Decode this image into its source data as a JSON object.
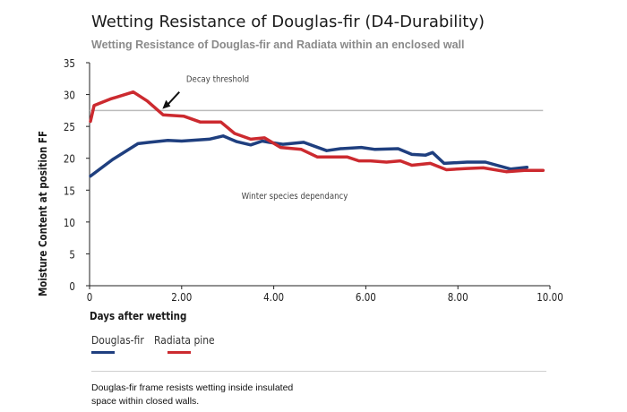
{
  "chart_data": {
    "type": "line",
    "title": "Wetting Resistance of Douglas-fir (D4-Durability)",
    "subtitle": "Wetting Resistance of Douglas-fir and Radiata within an enclosed wall",
    "xlabel": "Days after wetting",
    "ylabel": "Moisture Content at position FF",
    "xlim": [
      0,
      10
    ],
    "ylim": [
      0,
      35
    ],
    "x_ticks": [
      "0",
      "2.00",
      "4.00",
      "6.00",
      "8.00",
      "10.00"
    ],
    "y_ticks": [
      "0",
      "5",
      "10",
      "15",
      "20",
      "25",
      "30",
      "35"
    ],
    "grid": false,
    "legend_position": "bottom-left",
    "series": [
      {
        "name": "Douglas-fir",
        "color": "#1f3f7f",
        "x": [
          0.02,
          0.5,
          1.05,
          1.3,
          1.7,
          2.0,
          2.6,
          2.9,
          3.2,
          3.5,
          3.75,
          3.9,
          4.2,
          4.65,
          5.15,
          5.45,
          5.9,
          6.2,
          6.7,
          7.0,
          7.3,
          7.45,
          7.7,
          8.2,
          8.6,
          9.15,
          9.5
        ],
        "values": [
          17.2,
          19.8,
          22.3,
          22.5,
          22.8,
          22.7,
          23.0,
          23.5,
          22.6,
          22.1,
          22.7,
          22.5,
          22.2,
          22.5,
          21.2,
          21.5,
          21.7,
          21.4,
          21.5,
          20.6,
          20.5,
          20.9,
          19.2,
          19.4,
          19.4,
          18.3,
          18.6
        ]
      },
      {
        "name": "Radiata pine",
        "color": "#cc2a2f",
        "x": [
          0.02,
          0.1,
          0.45,
          0.95,
          1.25,
          1.6,
          2.05,
          2.4,
          2.85,
          3.15,
          3.5,
          3.8,
          4.15,
          4.6,
          4.95,
          5.2,
          5.6,
          5.85,
          6.1,
          6.45,
          6.75,
          7.0,
          7.4,
          7.75,
          8.2,
          8.55,
          9.05,
          9.45,
          9.85
        ],
        "values": [
          25.8,
          28.3,
          29.3,
          30.4,
          29.0,
          26.8,
          26.6,
          25.7,
          25.7,
          23.9,
          23.0,
          23.2,
          21.7,
          21.4,
          20.2,
          20.2,
          20.2,
          19.6,
          19.6,
          19.4,
          19.6,
          18.9,
          19.2,
          18.2,
          18.4,
          18.5,
          17.9,
          18.1,
          18.1
        ]
      }
    ],
    "threshold": {
      "value": 27.5,
      "color": "#bbbbbb"
    },
    "annotations": [
      {
        "text": "Decay threshold",
        "x": 2.1,
        "y": 32.0
      },
      {
        "text": "Winter species dependancy",
        "x": 3.3,
        "y": 13.6
      }
    ]
  },
  "caption": {
    "line1": "Douglas-fir frame resists wetting inside insulated",
    "line2": "space within closed walls."
  }
}
